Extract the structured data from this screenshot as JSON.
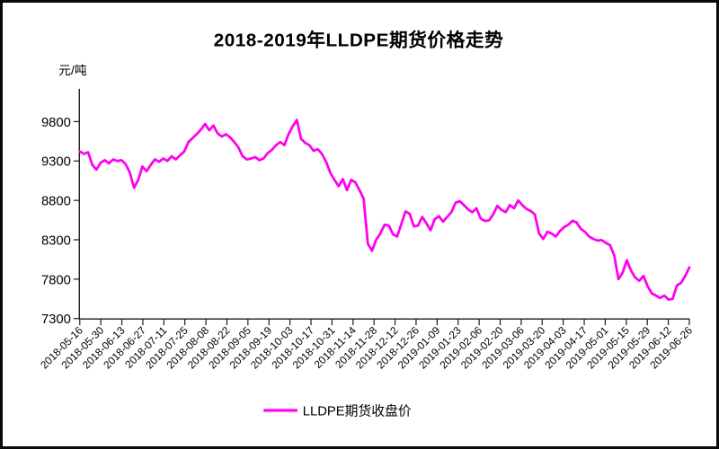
{
  "colors": {
    "line": "#FF00F0",
    "text": "#000000",
    "background": "#FFFFFF",
    "border": "#0A0A0A"
  },
  "legend": {
    "label": "LLDPE期货收盘价",
    "line_color": "#FF00F0"
  },
  "chart_data": {
    "type": "line",
    "title": "2018-2019年LLDPE期货价格走势",
    "xlabel": "",
    "ylabel": "元/吨",
    "ylim": [
      7300,
      10200
    ],
    "grid": false,
    "legend_position": "bottom",
    "y_ticks": [
      9800,
      9300,
      8800,
      8300,
      7800,
      7300
    ],
    "x_tick_labels": [
      "2018-05-16",
      "2018-05-30",
      "2018-06-13",
      "2018-06-27",
      "2018-07-11",
      "2018-07-25",
      "2018-08-08",
      "2018-08-22",
      "2018-09-05",
      "2018-09-19",
      "2018-10-03",
      "2018-10-17",
      "2018-10-31",
      "2018-11-14",
      "2018-11-28",
      "2018-12-12",
      "2018-12-26",
      "2019-01-09",
      "2019-01-23",
      "2019-02-06",
      "2019-02-20",
      "2019-03-06",
      "2019-03-20",
      "2019-04-03",
      "2019-04-17",
      "2019-05-01",
      "2019-05-15",
      "2019-05-29",
      "2019-06-12",
      "2019-06-26"
    ],
    "series": [
      {
        "name": "LLDPE期货收盘价",
        "color": "#FF00F0",
        "unit": "元/吨",
        "values": [
          9420,
          9390,
          9410,
          9250,
          9190,
          9280,
          9310,
          9270,
          9320,
          9300,
          9310,
          9260,
          9150,
          8960,
          9060,
          9230,
          9170,
          9250,
          9320,
          9290,
          9330,
          9300,
          9360,
          9320,
          9370,
          9420,
          9540,
          9590,
          9640,
          9700,
          9770,
          9690,
          9750,
          9650,
          9610,
          9640,
          9600,
          9540,
          9470,
          9360,
          9320,
          9330,
          9350,
          9310,
          9330,
          9400,
          9440,
          9500,
          9540,
          9500,
          9640,
          9740,
          9820,
          9580,
          9530,
          9500,
          9430,
          9450,
          9390,
          9290,
          9150,
          9060,
          8980,
          9070,
          8930,
          9060,
          9030,
          8930,
          8820,
          8250,
          8160,
          8300,
          8380,
          8490,
          8480,
          8370,
          8340,
          8500,
          8660,
          8630,
          8470,
          8480,
          8590,
          8510,
          8420,
          8560,
          8600,
          8530,
          8590,
          8650,
          8770,
          8790,
          8740,
          8685,
          8650,
          8700,
          8570,
          8540,
          8545,
          8620,
          8730,
          8680,
          8650,
          8740,
          8700,
          8800,
          8740,
          8690,
          8665,
          8620,
          8380,
          8310,
          8400,
          8380,
          8340,
          8410,
          8460,
          8490,
          8540,
          8520,
          8440,
          8400,
          8340,
          8310,
          8290,
          8295,
          8260,
          8230,
          8100,
          7800,
          7880,
          8040,
          7910,
          7820,
          7780,
          7840,
          7710,
          7620,
          7590,
          7560,
          7590,
          7540,
          7550,
          7720,
          7750,
          7840,
          7950
        ]
      }
    ]
  }
}
